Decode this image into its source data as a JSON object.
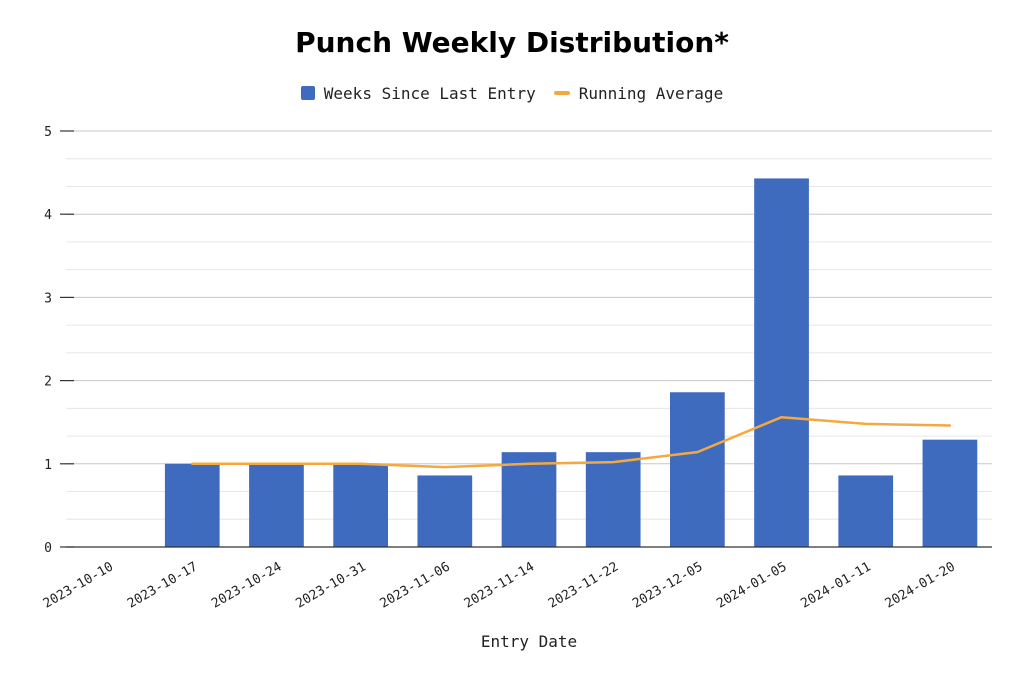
{
  "chart_data": {
    "type": "bar",
    "title": "Punch Weekly Distribution*",
    "xlabel": "Entry Date",
    "ylabel": "",
    "ylim": [
      0,
      5
    ],
    "yticks": [
      "0",
      "1",
      "2",
      "3",
      "4",
      "5"
    ],
    "grid": true,
    "legend_position": "top",
    "categories": [
      "2023-10-10",
      "2023-10-17",
      "2023-10-24",
      "2023-10-31",
      "2023-11-06",
      "2023-11-14",
      "2023-11-22",
      "2023-12-05",
      "2024-01-05",
      "2024-01-11",
      "2024-01-20"
    ],
    "series": [
      {
        "name": "Weeks Since Last Entry",
        "kind": "bar",
        "color": "#3f6bbf",
        "values": [
          0,
          1.0,
          1.0,
          1.0,
          0.86,
          1.14,
          1.14,
          1.86,
          4.43,
          0.86,
          1.29
        ]
      },
      {
        "name": "Running Average",
        "kind": "line",
        "color": "#f4a940",
        "values": [
          null,
          1.0,
          1.0,
          1.0,
          0.96,
          1.0,
          1.02,
          1.14,
          1.56,
          1.48,
          1.46
        ]
      }
    ]
  }
}
